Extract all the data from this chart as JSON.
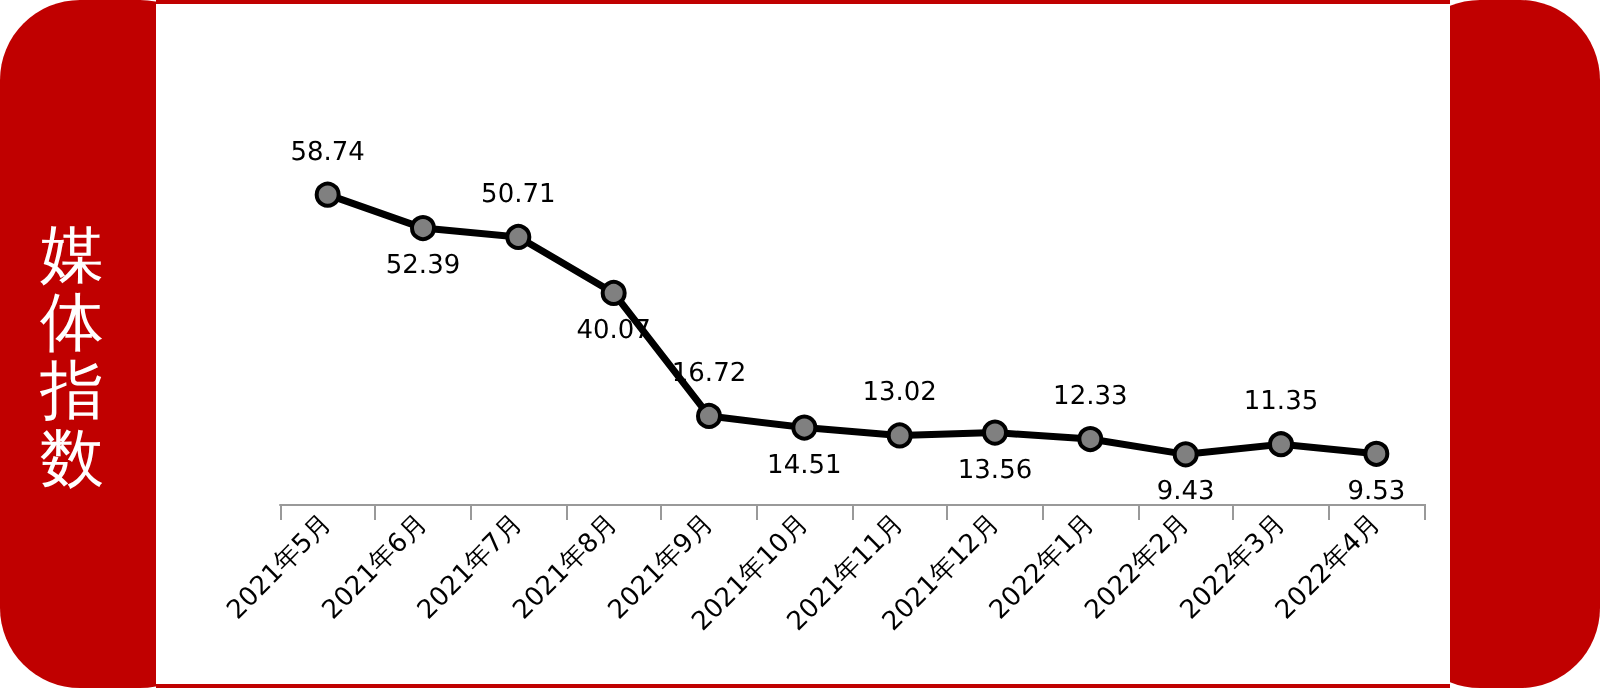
{
  "chart_data": {
    "type": "line",
    "ylabel": "媒体指数",
    "categories": [
      "2021年5月",
      "2021年6月",
      "2021年7月",
      "2021年8月",
      "2021年9月",
      "2021年10月",
      "2021年11月",
      "2021年12月",
      "2022年1月",
      "2022年2月",
      "2022年3月",
      "2022年4月"
    ],
    "series": [
      {
        "color": "#000000",
        "values": [
          58.74,
          52.39,
          50.71,
          40.07,
          16.72,
          14.51,
          13.02,
          13.56,
          12.33,
          9.43,
          11.35,
          9.53
        ]
      }
    ],
    "data_labels": true,
    "marker": "circle",
    "line_style": "solid",
    "grid": false,
    "tick_labels": "x"
  }
}
